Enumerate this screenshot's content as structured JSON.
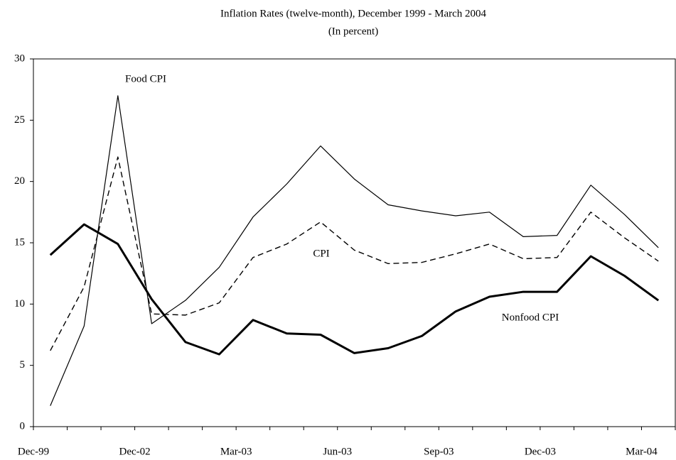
{
  "chart_data": {
    "type": "line",
    "title": "Inflation Rates (twelve-month), December 1999  - March 2004",
    "subtitle": "(In percent)",
    "categories": [
      "Dec-99",
      null,
      null,
      "Dec-02",
      null,
      null,
      "Mar-03",
      null,
      null,
      "Jun-03",
      null,
      null,
      "Sep-03",
      null,
      null,
      "Dec-03",
      null,
      null,
      "Mar-04"
    ],
    "series": [
      {
        "name": "Food CPI",
        "color": "#000000",
        "dash": "none",
        "width": 1.2,
        "values": [
          1.7,
          8.2,
          27,
          8.4,
          10.3,
          13,
          17.1,
          19.8,
          22.9,
          20.2,
          18.1,
          17.6,
          17.2,
          17.5,
          15.5,
          15.6,
          19.7,
          17.3,
          14.6
        ]
      },
      {
        "name": "CPI",
        "color": "#000000",
        "dash": "8 5",
        "width": 1.4,
        "values": [
          6.2,
          11.4,
          22,
          9.2,
          9.1,
          10.1,
          13.8,
          14.9,
          16.7,
          14.4,
          13.3,
          13.4,
          14.1,
          14.9,
          13.7,
          13.8,
          17.5,
          15.4,
          13.5
        ]
      },
      {
        "name": "Nonfood CPI",
        "color": "#000000",
        "dash": "none",
        "width": 3,
        "values": [
          14,
          16.5,
          14.9,
          10.4,
          6.9,
          5.9,
          8.7,
          7.6,
          7.5,
          6.0,
          6.4,
          7.4,
          9.4,
          10.6,
          11.0,
          11.0,
          13.9,
          12.3,
          10.3
        ]
      }
    ],
    "ylim": [
      0,
      30
    ],
    "yticks": [
      0,
      5,
      10,
      15,
      20,
      25,
      30
    ],
    "grid": false
  }
}
